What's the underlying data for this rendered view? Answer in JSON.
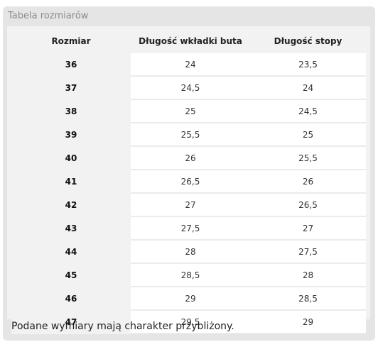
{
  "panel": {
    "title": "Tabela rozmiarów",
    "footnote": "Podane wymiary mają charakter przybliżony."
  },
  "table": {
    "headers": [
      "Rozmiar",
      "Długość wkładki buta",
      "Długość stopy"
    ],
    "rows": [
      [
        "36",
        "24",
        "23,5"
      ],
      [
        "37",
        "24,5",
        "24"
      ],
      [
        "38",
        "25",
        "24,5"
      ],
      [
        "39",
        "25,5",
        "25"
      ],
      [
        "40",
        "26",
        "25,5"
      ],
      [
        "41",
        "26,5",
        "26"
      ],
      [
        "42",
        "27",
        "26,5"
      ],
      [
        "43",
        "27,5",
        "27"
      ],
      [
        "44",
        "28",
        "27,5"
      ],
      [
        "45",
        "28,5",
        "28"
      ],
      [
        "46",
        "29",
        "28,5"
      ],
      [
        "47",
        "29,5",
        "29"
      ]
    ]
  },
  "colors": {
    "panel_bg": "#e5e5e5",
    "table_bg": "#f2f2f2",
    "cell_bg": "#ffffff"
  }
}
